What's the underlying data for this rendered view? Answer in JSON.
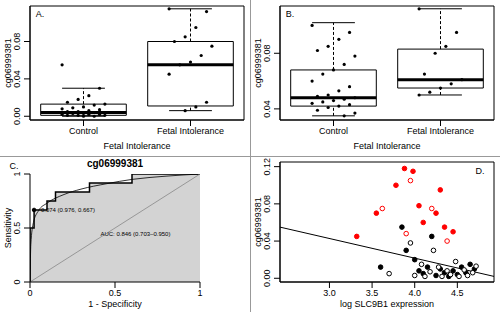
{
  "chart_data": [
    {
      "type": "box",
      "panel": "A.",
      "x_label": "Fetal Intolerance",
      "y_label": "cg06999381",
      "categories": [
        "Control",
        "Fetal Intolerance"
      ],
      "boxes": [
        {
          "min": 0,
          "q1": 0.001,
          "median": 0.004,
          "q3": 0.013,
          "max": 0.03
        },
        {
          "min": 0.006,
          "q1": 0.011,
          "median": 0.055,
          "q3": 0.08,
          "max": 0.115
        }
      ],
      "points": [
        [
          0.055,
          0.03,
          0.022,
          0.018,
          0.015,
          0.013,
          0.012,
          0.01,
          0.009,
          0.008,
          0.007,
          0.006,
          0.005,
          0.005,
          0.004,
          0.004,
          0.003,
          0.003,
          0.002,
          0.002,
          0.002,
          0.001,
          0.001,
          0.001,
          0,
          0
        ],
        [
          0.115,
          0.112,
          0.095,
          0.085,
          0.08,
          0.075,
          0.065,
          0.058,
          0.055,
          0.045,
          0.015,
          0.01,
          0.006
        ]
      ],
      "ylim": [
        -0.004,
        0.118
      ],
      "yticks": [
        {
          "value": 0,
          "label": "0.00"
        },
        {
          "value": 0.04,
          "label": "0.04"
        },
        {
          "value": 0.08,
          "label": "0.08"
        }
      ]
    },
    {
      "type": "box",
      "panel": "B.",
      "x_label": "Fetal Intolerance",
      "y_label": "cg06999381",
      "categories": [
        "Control",
        "Fetal Intolerance"
      ],
      "boxes": [
        {
          "min": 0.035,
          "q1": 0.042,
          "median": 0.048,
          "q3": 0.068,
          "max": 0.102
        },
        {
          "min": 0.05,
          "q1": 0.055,
          "median": 0.061,
          "q3": 0.083,
          "max": 0.112
        }
      ],
      "points": [
        [
          0.1,
          0.095,
          0.09,
          0.085,
          0.082,
          0.078,
          0.072,
          0.068,
          0.065,
          0.06,
          0.056,
          0.053,
          0.05,
          0.049,
          0.048,
          0.047,
          0.046,
          0.045,
          0.044,
          0.043,
          0.042,
          0.041,
          0.039,
          0.037,
          0.035
        ],
        [
          0.112,
          0.095,
          0.085,
          0.08,
          0.065,
          0.061,
          0.058,
          0.055,
          0.052,
          0.05
        ]
      ],
      "ylim": [
        0.032,
        0.114
      ],
      "yticks": [
        {
          "value": 0.04,
          "label": "0.04"
        },
        {
          "value": 0.08,
          "label": "0.08"
        }
      ]
    },
    {
      "type": "roc",
      "panel": "C.",
      "title": "cg06999381",
      "x_label": "1 - Specificity",
      "y_label": "Sensitivity",
      "xlim": [
        0,
        1
      ],
      "ylim": [
        0,
        1
      ],
      "xticks": [
        0,
        0.5,
        1
      ],
      "yticks": [
        0,
        0.5,
        1
      ],
      "curve": {
        "x": [
          0,
          0,
          0.024,
          0.024,
          0.1,
          0.1,
          0.15,
          0.15,
          0.35,
          0.35,
          0.6,
          0.6,
          1
        ],
        "y": [
          0,
          0.5,
          0.5,
          0.667,
          0.667,
          0.75,
          0.75,
          0.833,
          0.833,
          0.917,
          0.917,
          1,
          1
        ]
      },
      "smoothed": {
        "x": [
          0,
          0.005,
          0.02,
          0.05,
          0.1,
          0.2,
          0.3,
          0.45,
          0.6,
          0.8,
          1
        ],
        "y": [
          0,
          0.35,
          0.55,
          0.66,
          0.73,
          0.81,
          0.86,
          0.91,
          0.95,
          0.98,
          1
        ]
      },
      "diagonal": {
        "x": [
          0,
          1
        ],
        "y": [
          0,
          1
        ]
      },
      "fill_color": "#d3d3d3",
      "threshold": {
        "x": 0.024,
        "y": 0.667,
        "label": "0.074 (0.976, 0.667)"
      },
      "auc_label": "AUC: 0.846 (0.703–0.950)"
    },
    {
      "type": "scatter",
      "panel": "D.",
      "x_label": "log SLC9B1 expression",
      "y_label": "cg06999381",
      "xlim": [
        2.42,
        4.93
      ],
      "ylim": [
        -0.004,
        0.125
      ],
      "xticks": [
        {
          "value": 3,
          "label": "3.0"
        },
        {
          "value": 3.5,
          "label": "3.5"
        },
        {
          "value": 4,
          "label": "4.0"
        },
        {
          "value": 4.5,
          "label": "4.5"
        }
      ],
      "yticks": [
        {
          "value": 0,
          "label": "0.00"
        },
        {
          "value": 0.04,
          "label": "0.04"
        },
        {
          "value": 0.08,
          "label": "0.08"
        },
        {
          "value": 0.12,
          "label": "0.12"
        }
      ],
      "series": [
        {
          "color": "#000000",
          "marker": "filled",
          "points": [
            [
              3.6,
              0.012
            ],
            [
              3.85,
              0.055
            ],
            [
              3.9,
              0.03
            ],
            [
              4.0,
              0.02
            ],
            [
              4.05,
              0.008
            ],
            [
              4.1,
              0.005
            ],
            [
              4.15,
              0.012
            ],
            [
              4.2,
              0.045
            ],
            [
              4.25,
              0.003
            ],
            [
              4.3,
              0.01
            ],
            [
              4.35,
              0.006
            ],
            [
              4.4,
              0.002
            ],
            [
              4.45,
              0.008
            ],
            [
              4.5,
              0.004
            ],
            [
              4.55,
              0.012
            ],
            [
              4.6,
              0.006
            ],
            [
              4.65,
              0.015
            ],
            [
              4.7,
              0.01
            ]
          ]
        },
        {
          "color": "#000000",
          "marker": "open",
          "points": [
            [
              3.7,
              0.005
            ],
            [
              3.95,
              0.038
            ],
            [
              4.0,
              0.003
            ],
            [
              4.08,
              0.015
            ],
            [
              4.12,
              0.002
            ],
            [
              4.18,
              0.007
            ],
            [
              4.22,
              0.03
            ],
            [
              4.28,
              0.012
            ],
            [
              4.32,
              0.002
            ],
            [
              4.38,
              0.008
            ],
            [
              4.42,
              0.004
            ],
            [
              4.48,
              0.018
            ],
            [
              4.52,
              0.002
            ],
            [
              4.58,
              0.009
            ],
            [
              4.62,
              0.003
            ],
            [
              4.68,
              0.006
            ],
            [
              4.72,
              0.013
            ]
          ]
        },
        {
          "color": "#ff0000",
          "marker": "filled",
          "points": [
            [
              3.32,
              0.045
            ],
            [
              3.55,
              0.07
            ],
            [
              3.78,
              0.1
            ],
            [
              3.88,
              0.118
            ],
            [
              3.98,
              0.115
            ],
            [
              4.05,
              0.078
            ],
            [
              4.1,
              0.06
            ],
            [
              4.3,
              0.095
            ],
            [
              4.25,
              0.07
            ],
            [
              4.45,
              0.05
            ],
            [
              4.35,
              0.055
            ]
          ]
        },
        {
          "color": "#ff0000",
          "marker": "open",
          "points": [
            [
              3.62,
              0.075
            ],
            [
              3.9,
              0.048
            ],
            [
              3.95,
              0.105
            ],
            [
              4.2,
              0.075
            ],
            [
              4.38,
              0.04
            ]
          ]
        }
      ],
      "fit": {
        "x": [
          2.42,
          4.93
        ],
        "y": [
          0.055,
          0.002
        ]
      }
    }
  ]
}
